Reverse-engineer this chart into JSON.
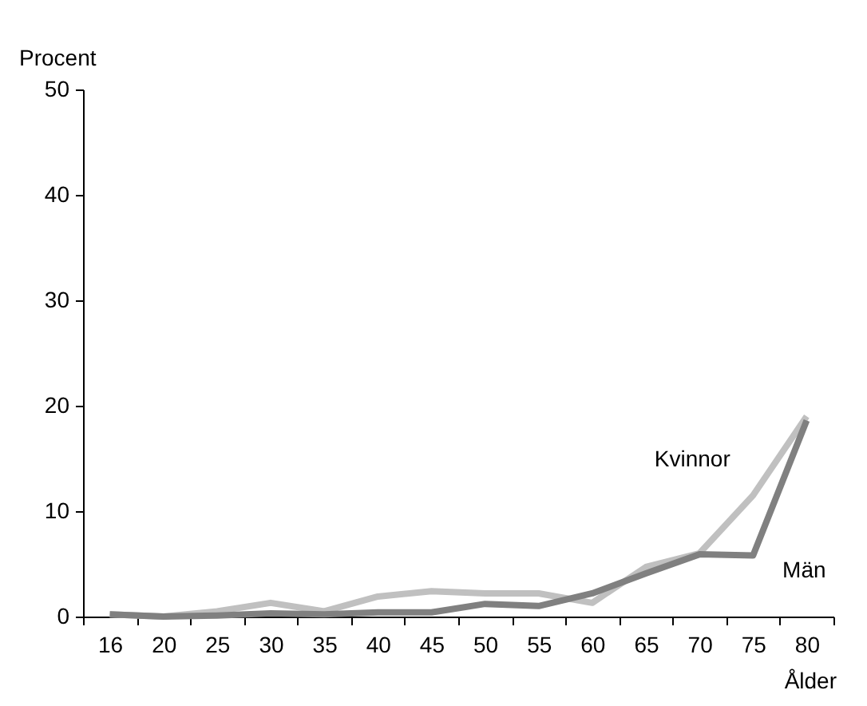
{
  "chart_data": {
    "type": "line",
    "ylabel": "Procent",
    "xlabel": "Ålder",
    "categories": [
      "16",
      "20",
      "25",
      "30",
      "35",
      "40",
      "45",
      "50",
      "55",
      "60",
      "65",
      "70",
      "75",
      "80"
    ],
    "series": [
      {
        "name": "Kvinnor",
        "color": "#c0c0c0",
        "values": [
          0.2,
          0,
          0.5,
          1.3,
          0.5,
          1.9,
          2.4,
          2.2,
          2.2,
          1.3,
          4.7,
          6.0,
          11.5,
          19.0
        ]
      },
      {
        "name": "Män",
        "color": "#808080",
        "values": [
          0.2,
          0,
          0.1,
          0.3,
          0.2,
          0.4,
          0.4,
          1.2,
          1.0,
          2.2,
          4.1,
          5.9,
          5.8,
          18.6
        ]
      }
    ],
    "ylim": [
      0,
      50
    ],
    "yticks": [
      0,
      10,
      20,
      30,
      40,
      50
    ],
    "grid": false,
    "legend": false,
    "line_style": "solid",
    "marker": "none"
  }
}
